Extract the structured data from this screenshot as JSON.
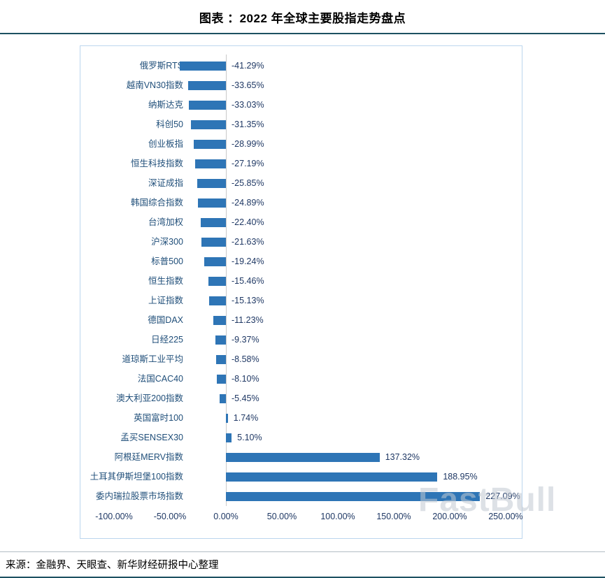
{
  "header": {
    "title": "图表  ：2022 年全球主要股指走势盘点"
  },
  "footer": {
    "source": "来源：金融界、天眼查、新华财经研报中心整理"
  },
  "watermark": "FastBull",
  "colors": {
    "bar": "#2E75B6",
    "category_label": "#1F4E79",
    "value_label": "#1F3864",
    "chart_border": "#BCD6EE",
    "rule": "#1D5161"
  },
  "chart_data": {
    "type": "bar",
    "orientation": "horizontal",
    "title": "2022 年全球主要股指走势盘点",
    "categories": [
      "俄罗斯RTS",
      "越南VN30指数",
      "纳斯达克",
      "科创50",
      "创业板指",
      "恒生科技指数",
      "深证成指",
      "韩国综合指数",
      "台湾加权",
      "沪深300",
      "标普500",
      "恒生指数",
      "上证指数",
      "德国DAX",
      "日经225",
      "道琼斯工业平均",
      "法国CAC40",
      "澳大利亚200指数",
      "英国富时100",
      "孟买SENSEX30",
      "阿根廷MERV指数",
      "土耳其伊斯坦堡100指数",
      "委内瑞拉股票市场指数"
    ],
    "values": [
      -41.29,
      -33.65,
      -33.03,
      -31.35,
      -28.99,
      -27.19,
      -25.85,
      -24.89,
      -22.4,
      -21.63,
      -19.24,
      -15.46,
      -15.13,
      -11.23,
      -9.37,
      -8.58,
      -8.1,
      -5.45,
      1.74,
      5.1,
      137.32,
      188.95,
      227.09
    ],
    "value_labels": [
      "-41.29%",
      "-33.65%",
      "-33.03%",
      "-31.35%",
      "-28.99%",
      "-27.19%",
      "-25.85%",
      "-24.89%",
      "-22.40%",
      "-21.63%",
      "-19.24%",
      "-15.46%",
      "-15.13%",
      "-11.23%",
      "-9.37%",
      "-8.58%",
      "-8.10%",
      "-5.45%",
      "1.74%",
      "5.10%",
      "137.32%",
      "188.95%",
      "227.09%"
    ],
    "x_ticks": [
      "-100.00%",
      "-50.00%",
      "0.00%",
      "50.00%",
      "100.00%",
      "150.00%",
      "200.00%",
      "250.00%"
    ],
    "x_tick_values": [
      -100,
      -50,
      0,
      50,
      100,
      150,
      200,
      250
    ],
    "xlim": [
      -100,
      250
    ],
    "grid": false,
    "legend": false,
    "bar_color": "#2E75B6"
  }
}
